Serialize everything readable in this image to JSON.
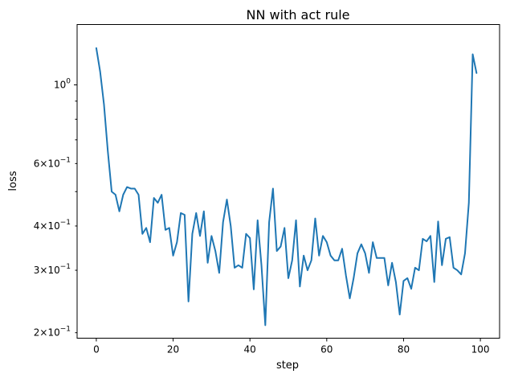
{
  "chart_data": {
    "type": "line",
    "title": "NN with act rule",
    "xlabel": "step",
    "ylabel": "loss",
    "xlim": [
      -5,
      105
    ],
    "ylim": [
      0.193,
      1.48
    ],
    "yscale": "log",
    "grid": false,
    "legend": "none",
    "x_ticks": [
      {
        "value": 0,
        "label": "0"
      },
      {
        "value": 20,
        "label": "20"
      },
      {
        "value": 40,
        "label": "40"
      },
      {
        "value": 60,
        "label": "60"
      },
      {
        "value": 80,
        "label": "80"
      },
      {
        "value": 100,
        "label": "100"
      }
    ],
    "y_major_ticks": [
      {
        "value": 1.0,
        "label": "10^0"
      }
    ],
    "y_minor_ticks": [
      {
        "value": 0.2,
        "label": "2×10^-1"
      },
      {
        "value": 0.3,
        "label": "3×10^-1"
      },
      {
        "value": 0.4,
        "label": "4×10^-1"
      },
      {
        "value": 0.5,
        "label": ""
      },
      {
        "value": 0.6,
        "label": "6×10^-1"
      },
      {
        "value": 0.7,
        "label": ""
      },
      {
        "value": 0.8,
        "label": ""
      },
      {
        "value": 0.9,
        "label": ""
      }
    ],
    "series": [
      {
        "color": "#1f77b4",
        "x": [
          0,
          1,
          2,
          3,
          4,
          5,
          6,
          7,
          8,
          9,
          10,
          11,
          12,
          13,
          14,
          15,
          16,
          17,
          18,
          19,
          20,
          21,
          22,
          23,
          24,
          25,
          26,
          27,
          28,
          29,
          30,
          31,
          32,
          33,
          34,
          35,
          36,
          37,
          38,
          39,
          40,
          41,
          42,
          43,
          44,
          45,
          46,
          47,
          48,
          49,
          50,
          51,
          52,
          53,
          54,
          55,
          56,
          57,
          58,
          59,
          60,
          61,
          62,
          63,
          64,
          65,
          66,
          67,
          68,
          69,
          70,
          71,
          72,
          73,
          74,
          75,
          76,
          77,
          78,
          79,
          80,
          81,
          82,
          83,
          84,
          85,
          86,
          87,
          88,
          89,
          90,
          91,
          92,
          93,
          94,
          95,
          96,
          97,
          98,
          99
        ],
        "values": [
          1.27,
          1.09,
          0.88,
          0.65,
          0.5,
          0.49,
          0.44,
          0.49,
          0.515,
          0.51,
          0.51,
          0.49,
          0.38,
          0.395,
          0.36,
          0.48,
          0.465,
          0.49,
          0.39,
          0.395,
          0.33,
          0.36,
          0.435,
          0.43,
          0.245,
          0.38,
          0.435,
          0.375,
          0.44,
          0.315,
          0.375,
          0.34,
          0.295,
          0.41,
          0.475,
          0.4,
          0.305,
          0.31,
          0.305,
          0.38,
          0.37,
          0.265,
          0.415,
          0.31,
          0.21,
          0.41,
          0.51,
          0.34,
          0.35,
          0.395,
          0.285,
          0.32,
          0.415,
          0.27,
          0.33,
          0.3,
          0.32,
          0.42,
          0.33,
          0.375,
          0.36,
          0.33,
          0.32,
          0.32,
          0.345,
          0.29,
          0.25,
          0.285,
          0.335,
          0.355,
          0.335,
          0.295,
          0.36,
          0.325,
          0.325,
          0.325,
          0.272,
          0.315,
          0.278,
          0.225,
          0.28,
          0.285,
          0.266,
          0.305,
          0.3,
          0.368,
          0.362,
          0.375,
          0.278,
          0.412,
          0.31,
          0.368,
          0.372,
          0.305,
          0.3,
          0.292,
          0.335,
          0.465,
          1.22,
          1.08
        ]
      }
    ]
  }
}
